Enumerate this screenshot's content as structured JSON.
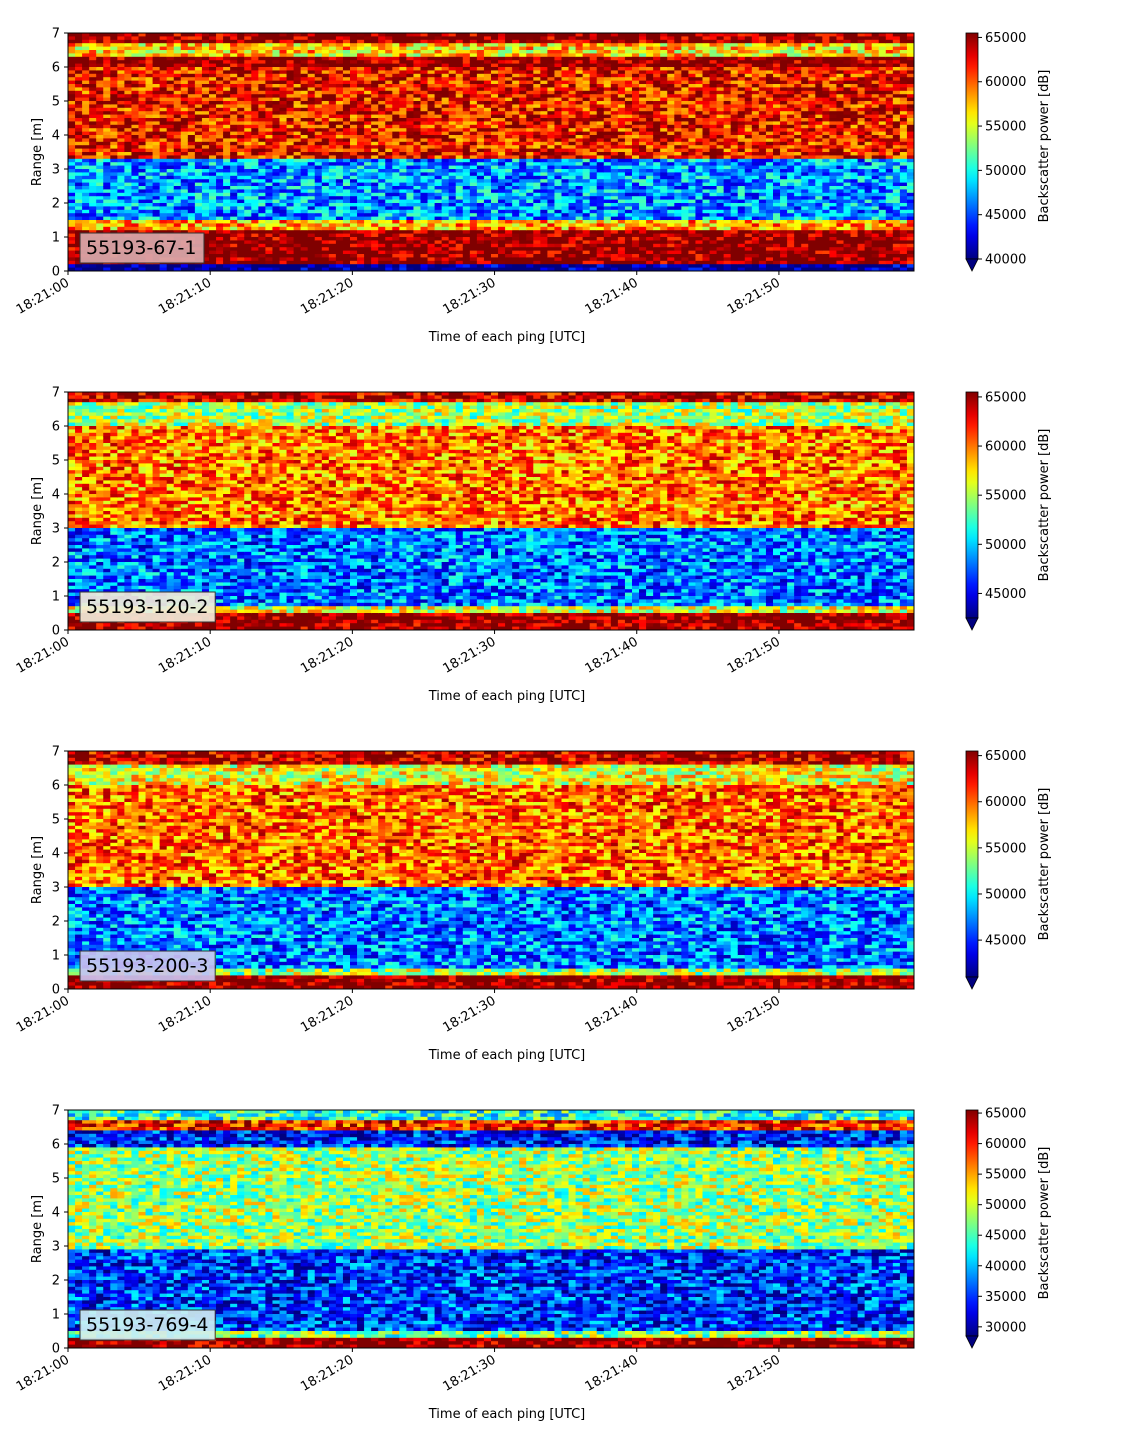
{
  "chart_data": [
    {
      "type": "heatmap",
      "panel_label": "55193-67-1",
      "xlabel": "Time of each ping [UTC]",
      "ylabel": "Range [m]",
      "colorbar_label": "Backscatter power [dB]",
      "x_ticks": [
        "18:21:00",
        "18:21:10",
        "18:21:20",
        "18:21:30",
        "18:21:40",
        "18:21:50"
      ],
      "x_range_seconds": [
        0,
        59.5
      ],
      "y_ticks": [
        0,
        1,
        2,
        3,
        4,
        5,
        6,
        7
      ],
      "ylim": [
        0,
        7
      ],
      "color_range": [
        40000,
        65500
      ],
      "colorbar_ticks": [
        40000,
        45000,
        50000,
        55000,
        60000,
        65000
      ],
      "colorbar_extend": "min",
      "colormap": "jet",
      "label_box_color": "#d9a9ab",
      "layers": [
        {
          "from_m": 0.0,
          "to_m": 0.2,
          "value": 40000
        },
        {
          "from_m": 0.2,
          "to_m": 1.2,
          "value": 65500
        },
        {
          "from_m": 1.2,
          "to_m": 1.5,
          "value": 58000
        },
        {
          "from_m": 1.5,
          "to_m": 3.3,
          "value": 47000
        },
        {
          "from_m": 3.3,
          "to_m": 6.0,
          "value": 62000
        },
        {
          "from_m": 6.0,
          "to_m": 6.3,
          "value": 65500
        },
        {
          "from_m": 6.3,
          "to_m": 6.7,
          "value": 57000
        },
        {
          "from_m": 6.7,
          "to_m": 7.0,
          "value": 65500
        }
      ]
    },
    {
      "type": "heatmap",
      "panel_label": "55193-120-2",
      "xlabel": "Time of each ping [UTC]",
      "ylabel": "Range [m]",
      "colorbar_label": "Backscatter power [dB]",
      "x_ticks": [
        "18:21:00",
        "18:21:10",
        "18:21:20",
        "18:21:30",
        "18:21:40",
        "18:21:50"
      ],
      "x_range_seconds": [
        0,
        59.5
      ],
      "y_ticks": [
        0,
        1,
        2,
        3,
        4,
        5,
        6,
        7
      ],
      "ylim": [
        0,
        7
      ],
      "color_range": [
        42500,
        65500
      ],
      "colorbar_ticks": [
        45000,
        50000,
        55000,
        60000,
        65000
      ],
      "colorbar_extend": "min",
      "colormap": "jet",
      "label_box_color": "#f2ecd9",
      "layers": [
        {
          "from_m": 0.0,
          "to_m": 0.5,
          "value": 65500
        },
        {
          "from_m": 0.5,
          "to_m": 0.7,
          "value": 56000
        },
        {
          "from_m": 0.7,
          "to_m": 3.0,
          "value": 48000
        },
        {
          "from_m": 3.0,
          "to_m": 6.0,
          "value": 60000
        },
        {
          "from_m": 6.0,
          "to_m": 6.7,
          "value": 55000
        },
        {
          "from_m": 6.7,
          "to_m": 7.0,
          "value": 64000
        }
      ]
    },
    {
      "type": "heatmap",
      "panel_label": "55193-200-3",
      "xlabel": "Time of each ping [UTC]",
      "ylabel": "Range [m]",
      "colorbar_label": "Backscatter power [dB]",
      "x_ticks": [
        "18:21:00",
        "18:21:10",
        "18:21:20",
        "18:21:30",
        "18:21:40",
        "18:21:50"
      ],
      "x_range_seconds": [
        0,
        59.5
      ],
      "y_ticks": [
        0,
        1,
        2,
        3,
        4,
        5,
        6,
        7
      ],
      "ylim": [
        0,
        7
      ],
      "color_range": [
        41000,
        65500
      ],
      "colorbar_ticks": [
        45000,
        50000,
        55000,
        60000,
        65000
      ],
      "colorbar_extend": "min",
      "colormap": "jet",
      "label_box_color": "#c9c2f0",
      "layers": [
        {
          "from_m": 0.0,
          "to_m": 0.4,
          "value": 65500
        },
        {
          "from_m": 0.4,
          "to_m": 0.6,
          "value": 54000
        },
        {
          "from_m": 0.6,
          "to_m": 3.0,
          "value": 47000
        },
        {
          "from_m": 3.0,
          "to_m": 6.0,
          "value": 60000
        },
        {
          "from_m": 6.0,
          "to_m": 6.6,
          "value": 56000
        },
        {
          "from_m": 6.6,
          "to_m": 7.0,
          "value": 64000
        }
      ]
    },
    {
      "type": "heatmap",
      "panel_label": "55193-769-4",
      "xlabel": "Time of each ping [UTC]",
      "ylabel": "Range [m]",
      "colorbar_label": "Backscatter power [dB]",
      "x_ticks": [
        "18:21:00",
        "18:21:10",
        "18:21:20",
        "18:21:30",
        "18:21:40",
        "18:21:50"
      ],
      "x_range_seconds": [
        0,
        59.5
      ],
      "y_ticks": [
        0,
        1,
        2,
        3,
        4,
        5,
        6,
        7
      ],
      "ylim": [
        0,
        7
      ],
      "color_range": [
        28500,
        65500
      ],
      "colorbar_ticks": [
        30000,
        35000,
        40000,
        45000,
        50000,
        55000,
        60000,
        65000
      ],
      "colorbar_extend": "min",
      "colormap": "jet",
      "label_box_color": "#cdeef2",
      "layers": [
        {
          "from_m": 0.0,
          "to_m": 0.3,
          "value": 65500
        },
        {
          "from_m": 0.3,
          "to_m": 0.5,
          "value": 47000
        },
        {
          "from_m": 0.5,
          "to_m": 2.9,
          "value": 35000
        },
        {
          "from_m": 2.9,
          "to_m": 5.9,
          "value": 48000
        },
        {
          "from_m": 5.9,
          "to_m": 6.4,
          "value": 34000
        },
        {
          "from_m": 6.4,
          "to_m": 6.7,
          "value": 60000
        },
        {
          "from_m": 6.7,
          "to_m": 7.0,
          "value": 44000
        }
      ]
    }
  ]
}
